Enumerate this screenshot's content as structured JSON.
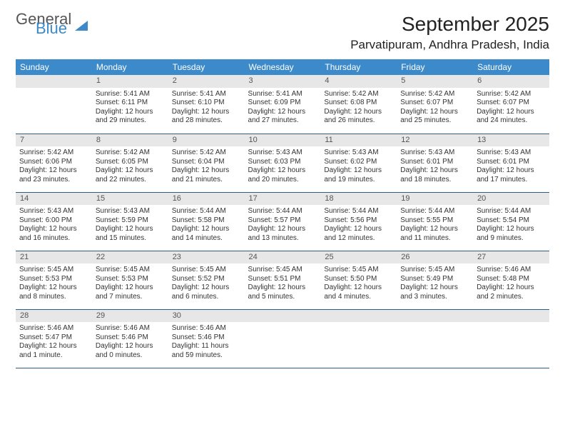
{
  "brand": {
    "part1": "General",
    "part2": "Blue"
  },
  "title": "September 2025",
  "location": "Parvatipuram, Andhra Pradesh, India",
  "colors": {
    "header_bg": "#3c8ac9",
    "daynum_bg": "#e7e7e7",
    "rule": "#2b5f87",
    "text": "#333333",
    "bg": "#ffffff"
  },
  "weekdays": [
    "Sunday",
    "Monday",
    "Tuesday",
    "Wednesday",
    "Thursday",
    "Friday",
    "Saturday"
  ],
  "weeks": [
    [
      {
        "n": "",
        "lines": []
      },
      {
        "n": "1",
        "lines": [
          "Sunrise: 5:41 AM",
          "Sunset: 6:11 PM",
          "Daylight: 12 hours and 29 minutes."
        ]
      },
      {
        "n": "2",
        "lines": [
          "Sunrise: 5:41 AM",
          "Sunset: 6:10 PM",
          "Daylight: 12 hours and 28 minutes."
        ]
      },
      {
        "n": "3",
        "lines": [
          "Sunrise: 5:41 AM",
          "Sunset: 6:09 PM",
          "Daylight: 12 hours and 27 minutes."
        ]
      },
      {
        "n": "4",
        "lines": [
          "Sunrise: 5:42 AM",
          "Sunset: 6:08 PM",
          "Daylight: 12 hours and 26 minutes."
        ]
      },
      {
        "n": "5",
        "lines": [
          "Sunrise: 5:42 AM",
          "Sunset: 6:07 PM",
          "Daylight: 12 hours and 25 minutes."
        ]
      },
      {
        "n": "6",
        "lines": [
          "Sunrise: 5:42 AM",
          "Sunset: 6:07 PM",
          "Daylight: 12 hours and 24 minutes."
        ]
      }
    ],
    [
      {
        "n": "7",
        "lines": [
          "Sunrise: 5:42 AM",
          "Sunset: 6:06 PM",
          "Daylight: 12 hours and 23 minutes."
        ]
      },
      {
        "n": "8",
        "lines": [
          "Sunrise: 5:42 AM",
          "Sunset: 6:05 PM",
          "Daylight: 12 hours and 22 minutes."
        ]
      },
      {
        "n": "9",
        "lines": [
          "Sunrise: 5:42 AM",
          "Sunset: 6:04 PM",
          "Daylight: 12 hours and 21 minutes."
        ]
      },
      {
        "n": "10",
        "lines": [
          "Sunrise: 5:43 AM",
          "Sunset: 6:03 PM",
          "Daylight: 12 hours and 20 minutes."
        ]
      },
      {
        "n": "11",
        "lines": [
          "Sunrise: 5:43 AM",
          "Sunset: 6:02 PM",
          "Daylight: 12 hours and 19 minutes."
        ]
      },
      {
        "n": "12",
        "lines": [
          "Sunrise: 5:43 AM",
          "Sunset: 6:01 PM",
          "Daylight: 12 hours and 18 minutes."
        ]
      },
      {
        "n": "13",
        "lines": [
          "Sunrise: 5:43 AM",
          "Sunset: 6:01 PM",
          "Daylight: 12 hours and 17 minutes."
        ]
      }
    ],
    [
      {
        "n": "14",
        "lines": [
          "Sunrise: 5:43 AM",
          "Sunset: 6:00 PM",
          "Daylight: 12 hours and 16 minutes."
        ]
      },
      {
        "n": "15",
        "lines": [
          "Sunrise: 5:43 AM",
          "Sunset: 5:59 PM",
          "Daylight: 12 hours and 15 minutes."
        ]
      },
      {
        "n": "16",
        "lines": [
          "Sunrise: 5:44 AM",
          "Sunset: 5:58 PM",
          "Daylight: 12 hours and 14 minutes."
        ]
      },
      {
        "n": "17",
        "lines": [
          "Sunrise: 5:44 AM",
          "Sunset: 5:57 PM",
          "Daylight: 12 hours and 13 minutes."
        ]
      },
      {
        "n": "18",
        "lines": [
          "Sunrise: 5:44 AM",
          "Sunset: 5:56 PM",
          "Daylight: 12 hours and 12 minutes."
        ]
      },
      {
        "n": "19",
        "lines": [
          "Sunrise: 5:44 AM",
          "Sunset: 5:55 PM",
          "Daylight: 12 hours and 11 minutes."
        ]
      },
      {
        "n": "20",
        "lines": [
          "Sunrise: 5:44 AM",
          "Sunset: 5:54 PM",
          "Daylight: 12 hours and 9 minutes."
        ]
      }
    ],
    [
      {
        "n": "21",
        "lines": [
          "Sunrise: 5:45 AM",
          "Sunset: 5:53 PM",
          "Daylight: 12 hours and 8 minutes."
        ]
      },
      {
        "n": "22",
        "lines": [
          "Sunrise: 5:45 AM",
          "Sunset: 5:53 PM",
          "Daylight: 12 hours and 7 minutes."
        ]
      },
      {
        "n": "23",
        "lines": [
          "Sunrise: 5:45 AM",
          "Sunset: 5:52 PM",
          "Daylight: 12 hours and 6 minutes."
        ]
      },
      {
        "n": "24",
        "lines": [
          "Sunrise: 5:45 AM",
          "Sunset: 5:51 PM",
          "Daylight: 12 hours and 5 minutes."
        ]
      },
      {
        "n": "25",
        "lines": [
          "Sunrise: 5:45 AM",
          "Sunset: 5:50 PM",
          "Daylight: 12 hours and 4 minutes."
        ]
      },
      {
        "n": "26",
        "lines": [
          "Sunrise: 5:45 AM",
          "Sunset: 5:49 PM",
          "Daylight: 12 hours and 3 minutes."
        ]
      },
      {
        "n": "27",
        "lines": [
          "Sunrise: 5:46 AM",
          "Sunset: 5:48 PM",
          "Daylight: 12 hours and 2 minutes."
        ]
      }
    ],
    [
      {
        "n": "28",
        "lines": [
          "Sunrise: 5:46 AM",
          "Sunset: 5:47 PM",
          "Daylight: 12 hours and 1 minute."
        ]
      },
      {
        "n": "29",
        "lines": [
          "Sunrise: 5:46 AM",
          "Sunset: 5:46 PM",
          "Daylight: 12 hours and 0 minutes."
        ]
      },
      {
        "n": "30",
        "lines": [
          "Sunrise: 5:46 AM",
          "Sunset: 5:46 PM",
          "Daylight: 11 hours and 59 minutes."
        ]
      },
      {
        "n": "",
        "lines": []
      },
      {
        "n": "",
        "lines": []
      },
      {
        "n": "",
        "lines": []
      },
      {
        "n": "",
        "lines": []
      }
    ]
  ]
}
